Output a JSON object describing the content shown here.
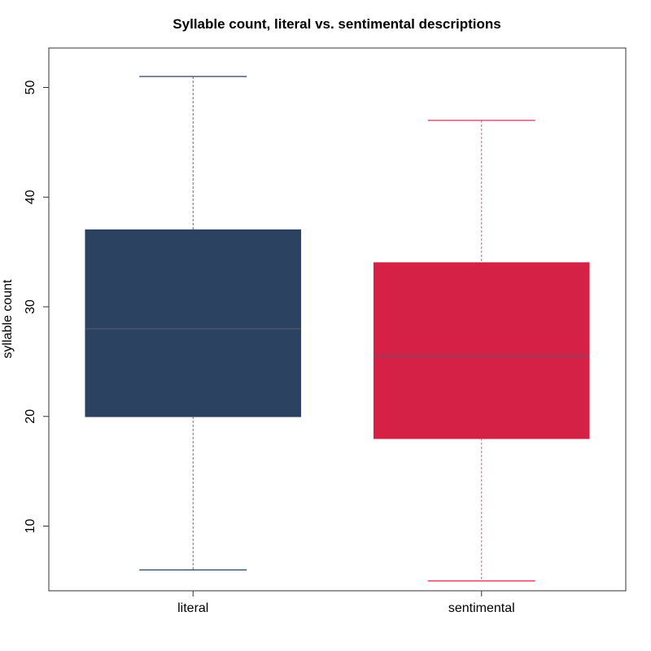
{
  "chart_data": {
    "type": "boxplot",
    "title": "Syllable count, literal vs. sentimental descriptions",
    "xlabel": "",
    "ylabel": "syllable count",
    "categories": [
      "literal",
      "sentimental"
    ],
    "series": [
      {
        "name": "literal",
        "color": "#2c4261",
        "whisker_low": 6,
        "q1": 20,
        "median": 28,
        "q3": 37,
        "whisker_high": 51
      },
      {
        "name": "sentimental",
        "color": "#d52146",
        "whisker_low": 5,
        "q1": 18,
        "median": 25.5,
        "q3": 34,
        "whisker_high": 47
      }
    ],
    "ylim": [
      4.1,
      53.6
    ],
    "yticks": [
      10,
      20,
      30,
      40,
      50
    ],
    "grid": false,
    "legend": "none"
  }
}
